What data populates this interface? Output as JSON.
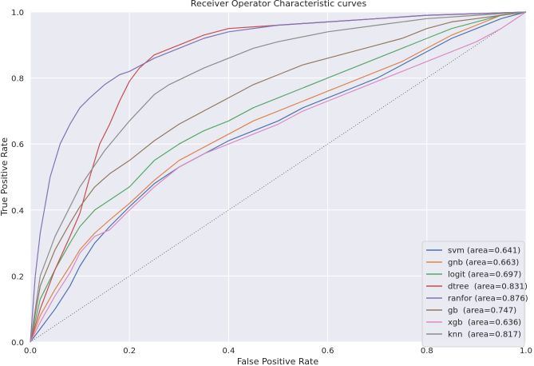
{
  "chart_data": {
    "type": "line",
    "title": "Receiver Operator Characteristic curves",
    "xlabel": "False Positive Rate",
    "ylabel": "True Positive Rate",
    "xlim": [
      0,
      1
    ],
    "ylim": [
      0,
      1
    ],
    "xticks": [
      "0.0",
      "0.2",
      "0.4",
      "0.6",
      "0.8",
      "1.0"
    ],
    "yticks": [
      "0.0",
      "0.2",
      "0.4",
      "0.6",
      "0.8",
      "1.0"
    ],
    "grid": true,
    "legend_position": "bottom-right",
    "background": "#eaeaf2",
    "diagonal": {
      "x": [
        0,
        1
      ],
      "y": [
        0,
        1
      ],
      "color": "#555555",
      "style": "dotted"
    },
    "series": [
      {
        "name": "svm",
        "legend": "svm (area=0.641)",
        "color": "#4c72b0",
        "x": [
          0,
          0.02,
          0.05,
          0.08,
          0.1,
          0.13,
          0.16,
          0.2,
          0.25,
          0.3,
          0.35,
          0.4,
          0.45,
          0.5,
          0.55,
          0.6,
          0.65,
          0.7,
          0.75,
          0.8,
          0.85,
          0.9,
          0.95,
          1.0
        ],
        "y": [
          0,
          0.04,
          0.1,
          0.17,
          0.23,
          0.3,
          0.35,
          0.41,
          0.48,
          0.53,
          0.57,
          0.61,
          0.64,
          0.67,
          0.71,
          0.74,
          0.77,
          0.8,
          0.84,
          0.88,
          0.92,
          0.95,
          0.98,
          1.0
        ]
      },
      {
        "name": "gnb",
        "legend": "gnb (area=0.663)",
        "color": "#dd8452",
        "x": [
          0,
          0.02,
          0.05,
          0.08,
          0.1,
          0.13,
          0.16,
          0.2,
          0.25,
          0.3,
          0.35,
          0.4,
          0.45,
          0.5,
          0.55,
          0.6,
          0.65,
          0.7,
          0.75,
          0.8,
          0.85,
          0.9,
          0.95,
          1.0
        ],
        "y": [
          0,
          0.08,
          0.16,
          0.23,
          0.28,
          0.33,
          0.37,
          0.42,
          0.49,
          0.55,
          0.59,
          0.63,
          0.67,
          0.7,
          0.73,
          0.76,
          0.79,
          0.82,
          0.85,
          0.89,
          0.93,
          0.96,
          0.99,
          1.0
        ]
      },
      {
        "name": "logit",
        "legend": "logit (area=0.697)",
        "color": "#55a868",
        "x": [
          0,
          0.02,
          0.05,
          0.08,
          0.1,
          0.13,
          0.16,
          0.2,
          0.25,
          0.3,
          0.35,
          0.4,
          0.45,
          0.5,
          0.55,
          0.6,
          0.65,
          0.7,
          0.75,
          0.8,
          0.85,
          0.9,
          0.95,
          1.0
        ],
        "y": [
          0,
          0.13,
          0.22,
          0.3,
          0.35,
          0.4,
          0.43,
          0.47,
          0.55,
          0.6,
          0.64,
          0.67,
          0.71,
          0.74,
          0.77,
          0.8,
          0.83,
          0.86,
          0.89,
          0.92,
          0.95,
          0.97,
          0.99,
          1.0
        ]
      },
      {
        "name": "dtree",
        "legend": "dtree  (area=0.831)",
        "color": "#c44e52",
        "x": [
          0,
          0.02,
          0.05,
          0.08,
          0.1,
          0.12,
          0.14,
          0.16,
          0.18,
          0.2,
          0.22,
          0.25,
          0.3,
          0.35,
          0.4,
          0.5,
          0.6,
          0.7,
          0.8,
          0.9,
          1.0
        ],
        "y": [
          0,
          0.1,
          0.22,
          0.32,
          0.39,
          0.5,
          0.6,
          0.66,
          0.73,
          0.79,
          0.83,
          0.87,
          0.9,
          0.93,
          0.95,
          0.96,
          0.97,
          0.98,
          0.99,
          0.995,
          1.0
        ]
      },
      {
        "name": "ranfor",
        "legend": "ranfor (area=0.876)",
        "color": "#8172b3",
        "x": [
          0,
          0.01,
          0.02,
          0.04,
          0.06,
          0.08,
          0.1,
          0.12,
          0.15,
          0.18,
          0.2,
          0.25,
          0.3,
          0.35,
          0.4,
          0.5,
          0.6,
          0.7,
          0.8,
          0.9,
          1.0
        ],
        "y": [
          0,
          0.2,
          0.33,
          0.5,
          0.6,
          0.66,
          0.71,
          0.74,
          0.78,
          0.81,
          0.82,
          0.86,
          0.89,
          0.92,
          0.94,
          0.96,
          0.97,
          0.98,
          0.99,
          0.995,
          1.0
        ]
      },
      {
        "name": "gb",
        "legend": "gb  (area=0.747)",
        "color": "#937860",
        "x": [
          0,
          0.02,
          0.05,
          0.08,
          0.1,
          0.13,
          0.16,
          0.2,
          0.25,
          0.3,
          0.35,
          0.4,
          0.45,
          0.5,
          0.55,
          0.6,
          0.65,
          0.7,
          0.75,
          0.8,
          0.85,
          0.9,
          0.95,
          1.0
        ],
        "y": [
          0,
          0.17,
          0.28,
          0.36,
          0.41,
          0.47,
          0.51,
          0.55,
          0.61,
          0.66,
          0.7,
          0.74,
          0.78,
          0.81,
          0.84,
          0.86,
          0.88,
          0.9,
          0.92,
          0.95,
          0.97,
          0.98,
          0.99,
          1.0
        ]
      },
      {
        "name": "xgb",
        "legend": "xgb  (area=0.636)",
        "color": "#da8bc3",
        "x": [
          0,
          0.02,
          0.05,
          0.08,
          0.1,
          0.13,
          0.16,
          0.2,
          0.25,
          0.3,
          0.35,
          0.4,
          0.45,
          0.5,
          0.55,
          0.6,
          0.65,
          0.7,
          0.75,
          0.8,
          0.85,
          0.9,
          0.95,
          1.0
        ],
        "y": [
          0,
          0.06,
          0.14,
          0.21,
          0.27,
          0.32,
          0.34,
          0.4,
          0.47,
          0.53,
          0.57,
          0.6,
          0.63,
          0.66,
          0.7,
          0.73,
          0.76,
          0.79,
          0.82,
          0.85,
          0.88,
          0.91,
          0.95,
          1.0
        ]
      },
      {
        "name": "knn",
        "legend": "knn  (area=0.817)",
        "color": "#8c8c8c",
        "x": [
          0,
          0.02,
          0.05,
          0.08,
          0.1,
          0.15,
          0.2,
          0.25,
          0.28,
          0.35,
          0.4,
          0.45,
          0.5,
          0.6,
          0.7,
          0.8,
          0.9,
          1.0
        ],
        "y": [
          0,
          0.2,
          0.32,
          0.41,
          0.47,
          0.58,
          0.67,
          0.75,
          0.78,
          0.83,
          0.86,
          0.89,
          0.91,
          0.94,
          0.96,
          0.98,
          0.99,
          1.0
        ]
      }
    ]
  }
}
